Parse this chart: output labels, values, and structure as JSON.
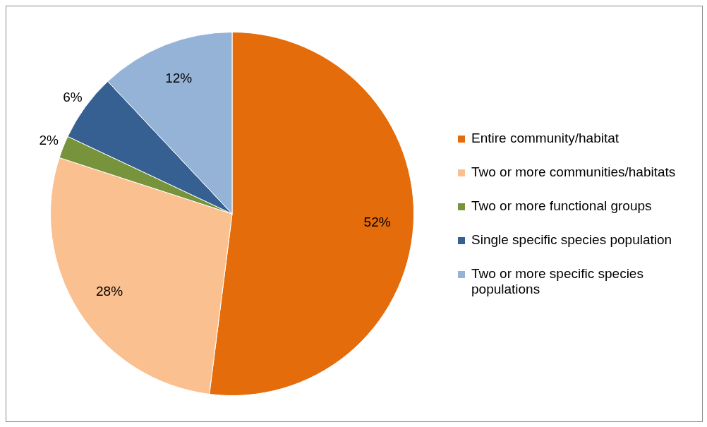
{
  "chart_data": {
    "type": "pie",
    "categories": [
      "Entire community/habitat",
      "Two or more communities/habitats",
      "Two or more functional groups",
      "Single specific species population",
      "Two or more specific species populations"
    ],
    "values": [
      52,
      28,
      2,
      6,
      12
    ],
    "value_labels": [
      "52%",
      "28%",
      "2%",
      "6%",
      "12%"
    ],
    "colors": [
      "#e46c0a",
      "#fac090",
      "#77933c",
      "#376092",
      "#95b3d7"
    ],
    "legend": "right"
  }
}
